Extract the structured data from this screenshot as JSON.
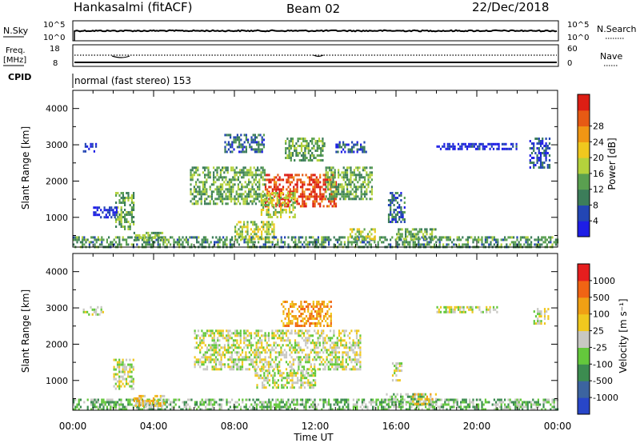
{
  "header": {
    "station": "Hankasalmi (fitACF)",
    "beam": "Beam 02",
    "date": "22/Dec/2018"
  },
  "status_panel": {
    "nsky_label": "N.Sky",
    "nsky_ticks": [
      "10^5",
      "10^0"
    ],
    "nsearch_label": "N.Search",
    "nsearch_ticks": [
      "10^5",
      "10^0"
    ],
    "freq_label_1": "Freq.",
    "freq_label_2": "[MHz]",
    "freq_ticks": [
      "18",
      "8"
    ],
    "nave_label": "Nave",
    "nave_ticks": [
      "60",
      "0"
    ],
    "cpid_label": "CPID",
    "cpid_text": "normal (fast stereo) 153"
  },
  "chart_data": [
    {
      "type": "heatmap",
      "name": "power",
      "ylabel": "Slant Range [km]",
      "y_ticks": [
        "1000",
        "2000",
        "3000",
        "4000"
      ],
      "ylim": [
        180,
        4500
      ],
      "x_hours": [
        0,
        24
      ],
      "colorbar": {
        "label": "Power [dB]",
        "ticks": [
          "4",
          "8",
          "12",
          "16",
          "20",
          "24",
          "28"
        ],
        "colors": [
          "#1e1ee6",
          "#2346b4",
          "#3c7d5a",
          "#5aa050",
          "#b4d23c",
          "#f0c81e",
          "#f09614",
          "#e65a14",
          "#dc1e14"
        ]
      },
      "regions": [
        {
          "t": [
            9.5,
            13.0
          ],
          "r": [
            1300,
            2200
          ],
          "level": 7.5
        },
        {
          "t": [
            5.8,
            9.5
          ],
          "r": [
            1400,
            2400
          ],
          "level": 3
        },
        {
          "t": [
            12.5,
            14.8
          ],
          "r": [
            1500,
            2400
          ],
          "level": 3
        },
        {
          "t": [
            9.3,
            11.0
          ],
          "r": [
            1000,
            1700
          ],
          "level": 4
        },
        {
          "t": [
            7.5,
            9.5
          ],
          "r": [
            2800,
            3300
          ],
          "level": 1.5
        },
        {
          "t": [
            10.5,
            12.5
          ],
          "r": [
            2600,
            3200
          ],
          "level": 3
        },
        {
          "t": [
            13.0,
            14.5
          ],
          "r": [
            2800,
            3100
          ],
          "level": 1
        },
        {
          "t": [
            2.1,
            3.0
          ],
          "r": [
            700,
            1700
          ],
          "level": 3
        },
        {
          "t": [
            0.5,
            1.2
          ],
          "r": [
            2850,
            3050
          ],
          "level": 0.5
        },
        {
          "t": [
            1.0,
            2.2
          ],
          "r": [
            1000,
            1300
          ],
          "level": 0.5
        },
        {
          "t": [
            8.0,
            10.0
          ],
          "r": [
            400,
            900
          ],
          "level": 4
        },
        {
          "t": [
            15.6,
            16.4
          ],
          "r": [
            900,
            1700
          ],
          "level": 1.5
        },
        {
          "t": [
            22.6,
            23.6
          ],
          "r": [
            2400,
            3200
          ],
          "level": 1
        },
        {
          "t": [
            18.0,
            22.0
          ],
          "r": [
            2900,
            3050
          ],
          "level": 0.3
        },
        {
          "t": [
            0.0,
            24.0
          ],
          "r": [
            200,
            480
          ],
          "level": 2.5
        },
        {
          "t": [
            16.0,
            18.0
          ],
          "r": [
            400,
            700
          ],
          "level": 3
        },
        {
          "t": [
            3.0,
            4.5
          ],
          "r": [
            350,
            600
          ],
          "level": 3
        },
        {
          "t": [
            13.7,
            15.0
          ],
          "r": [
            400,
            700
          ],
          "level": 4
        }
      ]
    },
    {
      "type": "heatmap",
      "name": "velocity",
      "ylabel": "Slant Range [km]",
      "y_ticks": [
        "1000",
        "2000",
        "3000",
        "4000"
      ],
      "ylim": [
        180,
        4500
      ],
      "x_label": "Time UT",
      "x_ticks": [
        "00:00",
        "04:00",
        "08:00",
        "12:00",
        "16:00",
        "20:00",
        "00:00"
      ],
      "x_hours": [
        0,
        24
      ],
      "colorbar": {
        "label": "Velocity [m s⁻¹]",
        "ticks": [
          "1000",
          "500",
          "100",
          "25",
          "-25",
          "-100",
          "-500",
          "-1000"
        ],
        "colors": [
          "#2846c8",
          "#3c64a0",
          "#3c8c50",
          "#64c83c",
          "#c8c8c3",
          "#f0c81e",
          "#f0a014",
          "#f06414",
          "#e61e1e"
        ]
      },
      "regions": [
        {
          "t": [
            6.0,
            14.2
          ],
          "r": [
            1300,
            2400
          ],
          "level": 4
        },
        {
          "t": [
            9.0,
            12.0
          ],
          "r": [
            800,
            1300
          ],
          "level": 4
        },
        {
          "t": [
            2.0,
            3.0
          ],
          "r": [
            800,
            1600
          ],
          "level": 4
        },
        {
          "t": [
            15.8,
            16.3
          ],
          "r": [
            1000,
            1500
          ],
          "level": 4
        },
        {
          "t": [
            10.3,
            12.8
          ],
          "r": [
            2500,
            3200
          ],
          "level": 6
        },
        {
          "t": [
            22.8,
            23.5
          ],
          "r": [
            2600,
            3000
          ],
          "level": 4
        },
        {
          "t": [
            0.0,
            24.0
          ],
          "r": [
            200,
            500
          ],
          "level": 3
        },
        {
          "t": [
            3.0,
            4.5
          ],
          "r": [
            300,
            600
          ],
          "level": 5
        },
        {
          "t": [
            15.5,
            17.5
          ],
          "r": [
            350,
            650
          ],
          "level": 3
        },
        {
          "t": [
            16.8,
            18.0
          ],
          "r": [
            350,
            650
          ],
          "level": 5
        },
        {
          "t": [
            0.5,
            1.5
          ],
          "r": [
            2850,
            3050
          ],
          "level": 4
        },
        {
          "t": [
            18.0,
            21.0
          ],
          "r": [
            2900,
            3050
          ],
          "level": 4
        }
      ]
    }
  ]
}
